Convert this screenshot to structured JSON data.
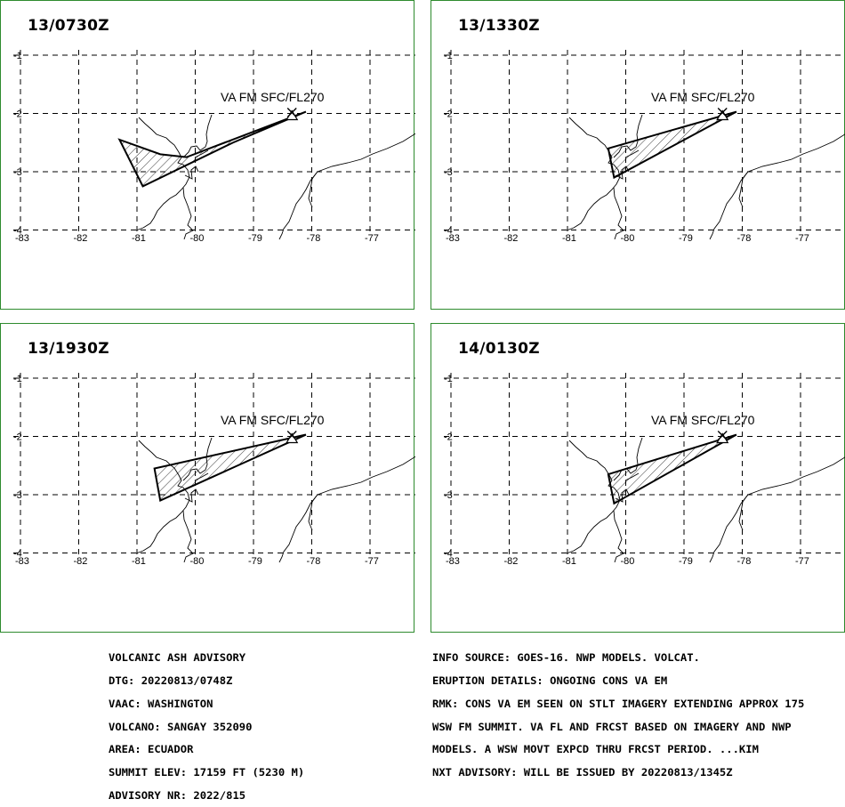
{
  "panels": [
    {
      "time": "13/0730Z",
      "label": "VA FM SFC/FL270",
      "poly": [
        [
          -81.3,
          -2.45
        ],
        [
          -80.9,
          -3.25
        ],
        [
          -79.35,
          -2.5
        ],
        [
          -78.1,
          -1.97
        ],
        [
          -80.15,
          -2.75
        ],
        [
          -80.6,
          -2.7
        ]
      ]
    },
    {
      "time": "13/1330Z",
      "label": "VA FM SFC/FL270",
      "poly": [
        [
          -80.3,
          -2.6
        ],
        [
          -80.2,
          -3.1
        ],
        [
          -78.1,
          -1.97
        ]
      ]
    },
    {
      "time": "13/1930Z",
      "label": "VA FM SFC/FL270",
      "poly": [
        [
          -80.7,
          -2.55
        ],
        [
          -80.6,
          -3.1
        ],
        [
          -78.1,
          -1.97
        ]
      ]
    },
    {
      "time": "14/0130Z",
      "label": "VA FM SFC/FL270",
      "poly": [
        [
          -80.3,
          -2.65
        ],
        [
          -80.2,
          -3.15
        ],
        [
          -78.1,
          -1.97
        ]
      ]
    }
  ],
  "axes": {
    "lon_ticks": [
      "-83",
      "-82",
      "-81",
      "-80",
      "-79",
      "-78",
      "-77"
    ],
    "lat_ticks": [
      "-1",
      "-2",
      "-3",
      "-4"
    ],
    "lon_values": [
      -83,
      -82,
      -81,
      -80,
      -79,
      -78,
      -77
    ],
    "lat_values": [
      -1,
      -2,
      -3,
      -4
    ]
  },
  "volcano": {
    "lon": -78.34,
    "lat": -2.0
  },
  "advisory_left": [
    "VOLCANIC ASH ADVISORY",
    "DTG: 20220813/0748Z",
    "VAAC: WASHINGTON",
    "VOLCANO: SANGAY 352090",
    "AREA: ECUADOR",
    "SUMMIT ELEV: 17159 FT (5230 M)",
    "ADVISORY NR: 2022/815"
  ],
  "advisory_right": [
    "INFO SOURCE: GOES-16. NWP MODELS. VOLCAT.",
    "ERUPTION DETAILS: ONGOING CONS VA EM",
    "RMK: CONS VA EM SEEN ON STLT IMAGERY EXTENDING APPROX 175",
    "WSW FM SUMMIT. VA FL AND FRCST BASED ON IMAGERY AND NWP",
    "MODELS. A WSW MOVT EXPCD THRU FRCST PERIOD. ...KIM",
    "NXT ADVISORY: WILL BE ISSUED BY 20220813/1345Z"
  ],
  "colors": {
    "border": "#2e8b2e",
    "line": "#000000"
  }
}
